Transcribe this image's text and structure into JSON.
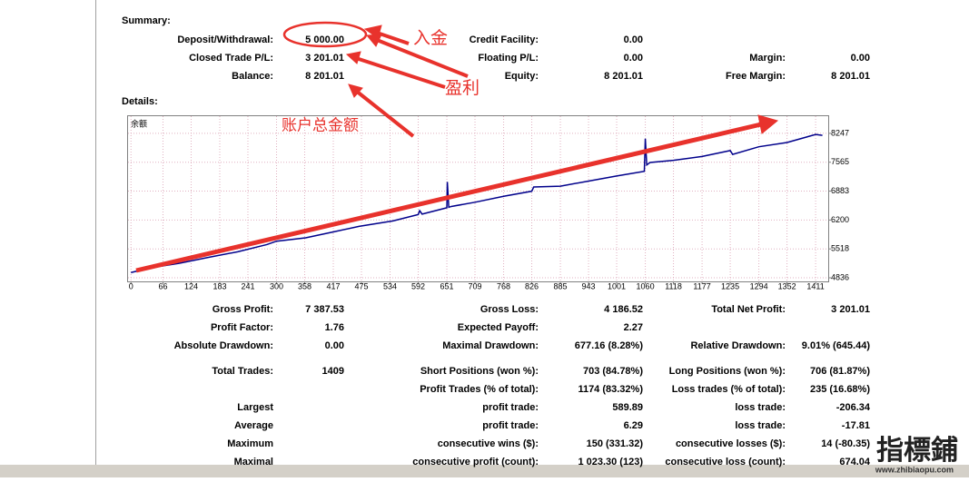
{
  "summary": {
    "title": "Summary:",
    "rows": [
      {
        "l1": "Deposit/Withdrawal:",
        "v1": "5 000.00",
        "l2": "Credit Facility:",
        "v2": "0.00"
      },
      {
        "l1": "Closed Trade P/L:",
        "v1": "3 201.01",
        "l2": "Floating P/L:",
        "v2": "0.00",
        "l3": "Margin:",
        "v3": "0.00"
      },
      {
        "l1": "Balance:",
        "v1": "8 201.01",
        "l2": "Equity:",
        "v2": "8 201.01",
        "l3": "Free Margin:",
        "v3": "8 201.01"
      }
    ]
  },
  "details": {
    "title": "Details:"
  },
  "chart_data": {
    "type": "line",
    "label": "余额",
    "color": "#00008b",
    "x": [
      0,
      40,
      100,
      160,
      220,
      280,
      300,
      360,
      417,
      470,
      540,
      592,
      595,
      600,
      651,
      652,
      655,
      660,
      709,
      768,
      826,
      830,
      885,
      943,
      1001,
      1058,
      1060,
      1063,
      1070,
      1118,
      1177,
      1235,
      1240,
      1294,
      1352,
      1411,
      1425
    ],
    "values": [
      4960,
      5070,
      5180,
      5320,
      5450,
      5620,
      5700,
      5780,
      5920,
      6050,
      6180,
      6330,
      6420,
      6340,
      6490,
      7100,
      6500,
      6520,
      6620,
      6760,
      6880,
      6980,
      7000,
      7120,
      7240,
      7350,
      8120,
      7500,
      7560,
      7610,
      7700,
      7840,
      7750,
      7930,
      8030,
      8220,
      8200
    ],
    "xlim": [
      -6,
      1437
    ],
    "ylim": [
      4751,
      8652
    ],
    "xticks": [
      0,
      66,
      124,
      183,
      241,
      300,
      358,
      417,
      475,
      534,
      592,
      651,
      709,
      768,
      826,
      885,
      943,
      1001,
      1060,
      1118,
      1177,
      1235,
      1294,
      1352,
      1411
    ],
    "yticks": [
      4836,
      5518,
      6200,
      6883,
      7565,
      8247
    ],
    "grid": true
  },
  "stats": {
    "rows": [
      {
        "l1": "Gross Profit:",
        "v1": "7 387.53",
        "l2": "Gross Loss:",
        "v2": "4 186.52",
        "l3": "Total Net Profit:",
        "v3": "3 201.01"
      },
      {
        "l1": "Profit Factor:",
        "v1": "1.76",
        "l2": "Expected Payoff:",
        "v2": "2.27"
      },
      {
        "l1": "Absolute Drawdown:",
        "v1": "0.00",
        "l2": "Maximal Drawdown:",
        "v2": "677.16 (8.28%)",
        "l3": "Relative Drawdown:",
        "v3": "9.01% (645.44)"
      },
      {
        "l1": "Total Trades:",
        "v1": "1409",
        "l2": "Short Positions (won %):",
        "v2": "703 (84.78%)",
        "l3": "Long Positions (won %):",
        "v3": "706 (81.87%)"
      },
      {
        "l2": "Profit Trades (% of total):",
        "v2": "1174 (83.32%)",
        "l3": "Loss trades (% of total):",
        "v3": "235 (16.68%)"
      },
      {
        "l1": "Largest",
        "l2": "profit trade:",
        "v2": "589.89",
        "l3": "loss trade:",
        "v3": "-206.34"
      },
      {
        "l1": "Average",
        "l2": "profit trade:",
        "v2": "6.29",
        "l3": "loss trade:",
        "v3": "-17.81"
      },
      {
        "l1": "Maximum",
        "l2": "consecutive wins ($):",
        "v2": "150 (331.32)",
        "l3": "consecutive losses ($):",
        "v3": "14 (-80.35)"
      },
      {
        "l1": "Maximal",
        "l2": "consecutive profit (count):",
        "v2": "1 023.30 (123)",
        "l3": "consecutive loss (count):",
        "v3": "674.04"
      }
    ]
  },
  "annotations": {
    "deposit": "入金",
    "profit": "盈利",
    "balance": "账户总金额"
  },
  "watermark": {
    "name": "指標鋪",
    "url": "www.zhibiaopu.com"
  }
}
